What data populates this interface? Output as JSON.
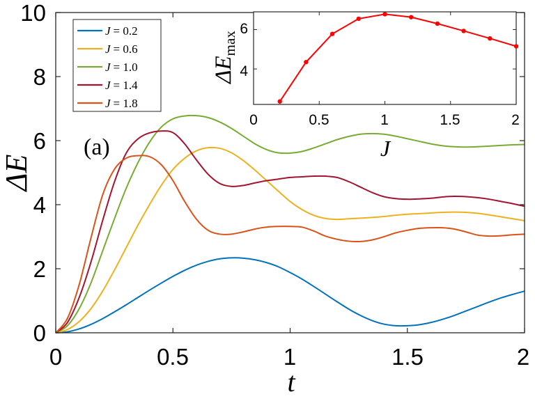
{
  "chart_data": [
    {
      "type": "line",
      "panel_label": "(a)",
      "xlabel": "t",
      "ylabel": "ΔE",
      "xlim": [
        0,
        2
      ],
      "ylim": [
        0,
        10
      ],
      "xticks": [
        "0",
        "0.5",
        "1",
        "1.5",
        "2"
      ],
      "yticks": [
        "0",
        "2",
        "4",
        "6",
        "8",
        "10"
      ],
      "legend_position": "top-left",
      "x": [
        0,
        0.05,
        0.1,
        0.15,
        0.2,
        0.25,
        0.3,
        0.35,
        0.4,
        0.45,
        0.5,
        0.55,
        0.6,
        0.65,
        0.7,
        0.75,
        0.8,
        0.85,
        0.9,
        0.95,
        1.0,
        1.05,
        1.1,
        1.15,
        1.2,
        1.25,
        1.3,
        1.35,
        1.4,
        1.45,
        1.5,
        1.55,
        1.6,
        1.65,
        1.7,
        1.75,
        1.8,
        1.85,
        1.9,
        1.95,
        2.0
      ],
      "series": [
        {
          "name": "J = 0.2",
          "label_lhs": "J",
          "label_rhs": "= 0.2",
          "color": "#0072BD",
          "values": [
            0,
            0.03,
            0.12,
            0.26,
            0.44,
            0.65,
            0.87,
            1.1,
            1.33,
            1.55,
            1.76,
            1.95,
            2.11,
            2.23,
            2.31,
            2.34,
            2.33,
            2.28,
            2.19,
            2.06,
            1.88,
            1.68,
            1.45,
            1.21,
            0.97,
            0.74,
            0.54,
            0.38,
            0.27,
            0.22,
            0.22,
            0.25,
            0.32,
            0.42,
            0.54,
            0.68,
            0.82,
            0.96,
            1.09,
            1.2,
            1.3
          ]
        },
        {
          "name": "J = 0.6",
          "label_lhs": "J",
          "label_rhs": "= 0.6",
          "color": "#EDB120",
          "values": [
            0,
            0.1,
            0.35,
            0.75,
            1.3,
            1.95,
            2.65,
            3.35,
            4.0,
            4.6,
            5.1,
            5.45,
            5.68,
            5.78,
            5.76,
            5.62,
            5.38,
            5.08,
            4.75,
            4.42,
            4.1,
            3.85,
            3.67,
            3.57,
            3.54,
            3.56,
            3.58,
            3.6,
            3.63,
            3.67,
            3.7,
            3.72,
            3.74,
            3.76,
            3.77,
            3.76,
            3.73,
            3.68,
            3.62,
            3.56,
            3.5
          ]
        },
        {
          "name": "J = 1.0",
          "label_lhs": "J",
          "label_rhs": "= 1.0",
          "color": "#77AC30",
          "values": [
            0,
            0.22,
            0.75,
            1.55,
            2.55,
            3.55,
            4.5,
            5.3,
            5.95,
            6.42,
            6.68,
            6.77,
            6.78,
            6.72,
            6.58,
            6.38,
            6.14,
            5.9,
            5.72,
            5.62,
            5.61,
            5.66,
            5.77,
            5.9,
            6.03,
            6.13,
            6.2,
            6.22,
            6.2,
            6.14,
            6.06,
            5.98,
            5.9,
            5.84,
            5.81,
            5.8,
            5.81,
            5.83,
            5.85,
            5.87,
            5.88
          ]
        },
        {
          "name": "J = 1.4",
          "label_lhs": "J",
          "label_rhs": "= 1.4",
          "color": "#A2142F",
          "values": [
            0,
            0.32,
            1.1,
            2.2,
            3.5,
            4.7,
            5.6,
            6.05,
            6.24,
            6.3,
            6.25,
            5.9,
            5.4,
            4.95,
            4.66,
            4.57,
            4.6,
            4.68,
            4.75,
            4.8,
            4.85,
            4.87,
            4.89,
            4.89,
            4.85,
            4.72,
            4.55,
            4.38,
            4.25,
            4.19,
            4.17,
            4.18,
            4.2,
            4.24,
            4.26,
            4.25,
            4.22,
            4.17,
            4.1,
            4.03,
            3.95
          ]
        },
        {
          "name": "J = 1.8",
          "label_lhs": "J",
          "label_rhs": "= 1.8",
          "color": "#D95319",
          "values": [
            0,
            0.45,
            1.5,
            2.95,
            4.3,
            5.1,
            5.45,
            5.53,
            5.5,
            5.25,
            4.75,
            4.1,
            3.55,
            3.2,
            3.08,
            3.08,
            3.15,
            3.24,
            3.3,
            3.32,
            3.32,
            3.3,
            3.18,
            3.02,
            2.92,
            2.86,
            2.85,
            2.9,
            3.0,
            3.12,
            3.2,
            3.26,
            3.28,
            3.28,
            3.24,
            3.15,
            3.05,
            3.02,
            3.03,
            3.06,
            3.08
          ]
        }
      ]
    },
    {
      "type": "line",
      "title": "inset",
      "xlabel": "J",
      "ylabel_main": "ΔE",
      "ylabel_sub": "max",
      "xlim": [
        0,
        2
      ],
      "ylim": [
        2.2,
        6.9
      ],
      "xticks": [
        "0",
        "0.5",
        "1",
        "1.5",
        "2"
      ],
      "yticks": [
        "4",
        "6"
      ],
      "color": "#FF0000",
      "x": [
        0.2,
        0.4,
        0.6,
        0.8,
        1.0,
        1.2,
        1.4,
        1.6,
        1.8,
        2.0
      ],
      "values": [
        2.35,
        4.35,
        5.78,
        6.55,
        6.78,
        6.63,
        6.3,
        5.93,
        5.55,
        5.15
      ]
    }
  ]
}
